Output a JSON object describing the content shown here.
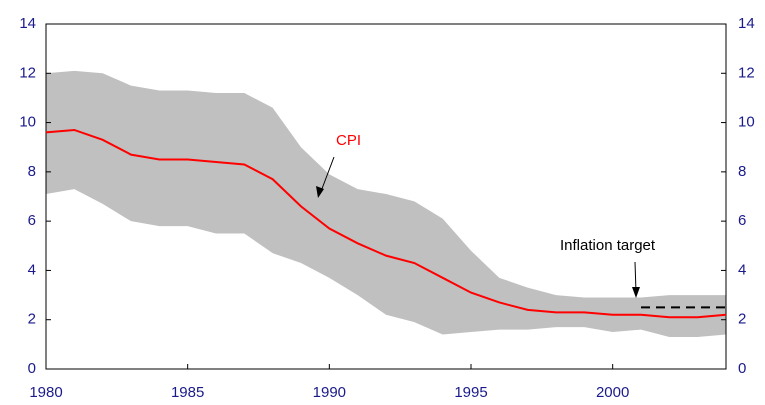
{
  "chart_data": {
    "type": "line",
    "x": [
      1980,
      1981,
      1982,
      1983,
      1984,
      1985,
      1986,
      1987,
      1988,
      1989,
      1990,
      1991,
      1992,
      1993,
      1994,
      1995,
      1996,
      1997,
      1998,
      1999,
      2000,
      2001,
      2002,
      2003,
      2004
    ],
    "series": [
      {
        "name": "CPI",
        "color": "#ff0000",
        "values": [
          9.6,
          9.7,
          9.3,
          8.7,
          8.5,
          8.5,
          8.4,
          8.3,
          7.7,
          6.6,
          5.7,
          5.1,
          4.6,
          4.3,
          3.7,
          3.1,
          2.7,
          2.4,
          2.3,
          2.3,
          2.2,
          2.2,
          2.1,
          2.1,
          2.2
        ]
      }
    ],
    "band": {
      "color": "#c0c0c0",
      "upper": [
        12.0,
        12.1,
        12.0,
        11.5,
        11.3,
        11.3,
        11.2,
        11.2,
        10.6,
        9.0,
        7.9,
        7.3,
        7.1,
        6.8,
        6.1,
        4.8,
        3.7,
        3.3,
        3.0,
        2.9,
        2.9,
        2.9,
        3.0,
        3.0,
        3.0
      ],
      "lower": [
        7.1,
        7.3,
        6.7,
        6.0,
        5.8,
        5.8,
        5.5,
        5.5,
        4.7,
        4.3,
        3.7,
        3.0,
        2.2,
        1.9,
        1.4,
        1.5,
        1.6,
        1.6,
        1.7,
        1.7,
        1.5,
        1.6,
        1.3,
        1.3,
        1.4
      ]
    },
    "target": {
      "label": "Inflation target",
      "value": 2.5,
      "x": [
        2001,
        2004
      ],
      "color": "#000000"
    },
    "xlim": [
      1980,
      2004
    ],
    "xticks": [
      1980,
      1985,
      1990,
      1995,
      2000
    ],
    "ylim": [
      0,
      14
    ],
    "yticks": [
      0,
      2,
      4,
      6,
      8,
      10,
      12,
      14
    ],
    "y2lim": [
      0,
      14
    ],
    "y2ticks": [
      0,
      2,
      4,
      6,
      8,
      10,
      12,
      14
    ]
  }
}
